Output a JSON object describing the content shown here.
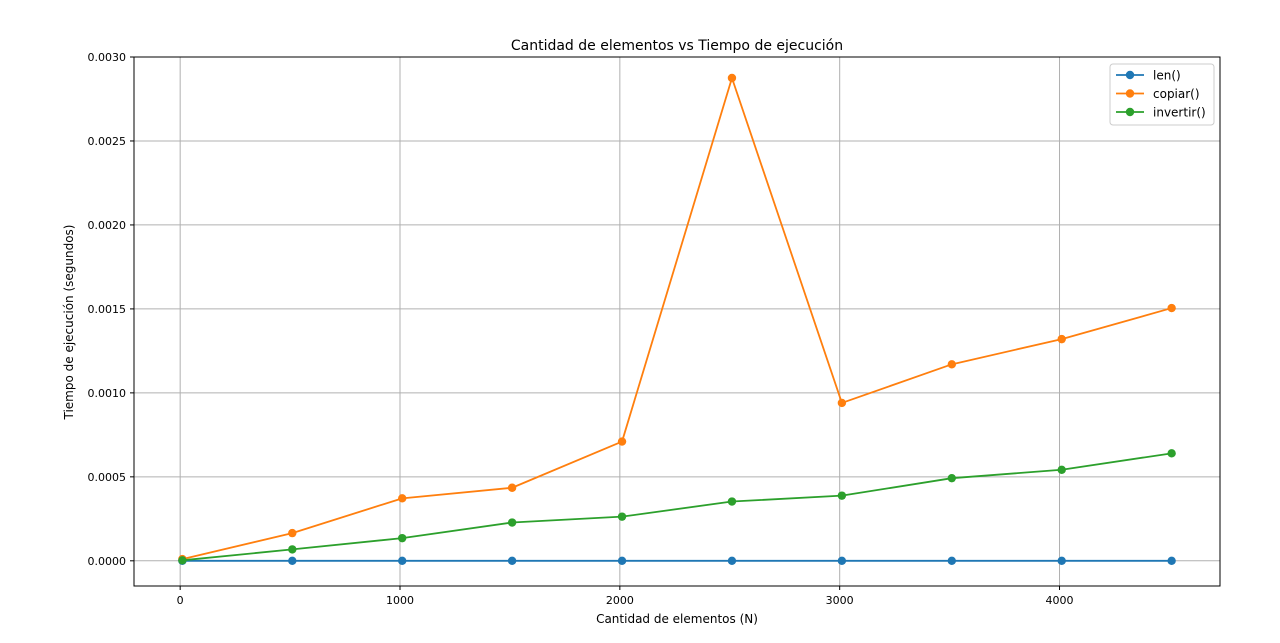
{
  "chart_data": {
    "type": "line",
    "title": "Cantidad de elementos vs Tiempo de ejecución",
    "xlabel": "Cantidad de elementos (N)",
    "ylabel": "Tiempo de ejecución (segundos)",
    "xlim": [
      -210,
      4730
    ],
    "ylim": [
      -0.00015,
      0.003
    ],
    "grid": true,
    "legend_position": "top-right",
    "x_ticks": [
      0,
      1000,
      2000,
      3000,
      4000
    ],
    "x_tick_labels": [
      "0",
      "1000",
      "2000",
      "3000",
      "4000"
    ],
    "y_ticks": [
      0,
      0.0005,
      0.001,
      0.0015,
      0.002,
      0.0025,
      0.003
    ],
    "y_tick_labels": [
      "0.0000",
      "0.0005",
      "0.0010",
      "0.0015",
      "0.0020",
      "0.0025",
      "0.0030"
    ],
    "x": [
      10,
      510,
      1010,
      1510,
      2010,
      2510,
      3010,
      3510,
      4010,
      4510
    ],
    "series": [
      {
        "name": "len()",
        "color": "#1f77b4",
        "values": [
          0,
          0,
          0,
          0,
          0,
          0,
          0,
          0,
          0,
          0
        ]
      },
      {
        "name": "copiar()",
        "color": "#ff7f0e",
        "values": [
          1e-05,
          0.000165,
          0.000372,
          0.000435,
          0.00071,
          0.002875,
          0.00094,
          0.00117,
          0.00132,
          0.001505
        ]
      },
      {
        "name": "invertir()",
        "color": "#2ca02c",
        "values": [
          3e-06,
          6.8e-05,
          0.000135,
          0.000228,
          0.000263,
          0.000353,
          0.000388,
          0.000492,
          0.000542,
          0.00064
        ]
      }
    ]
  }
}
